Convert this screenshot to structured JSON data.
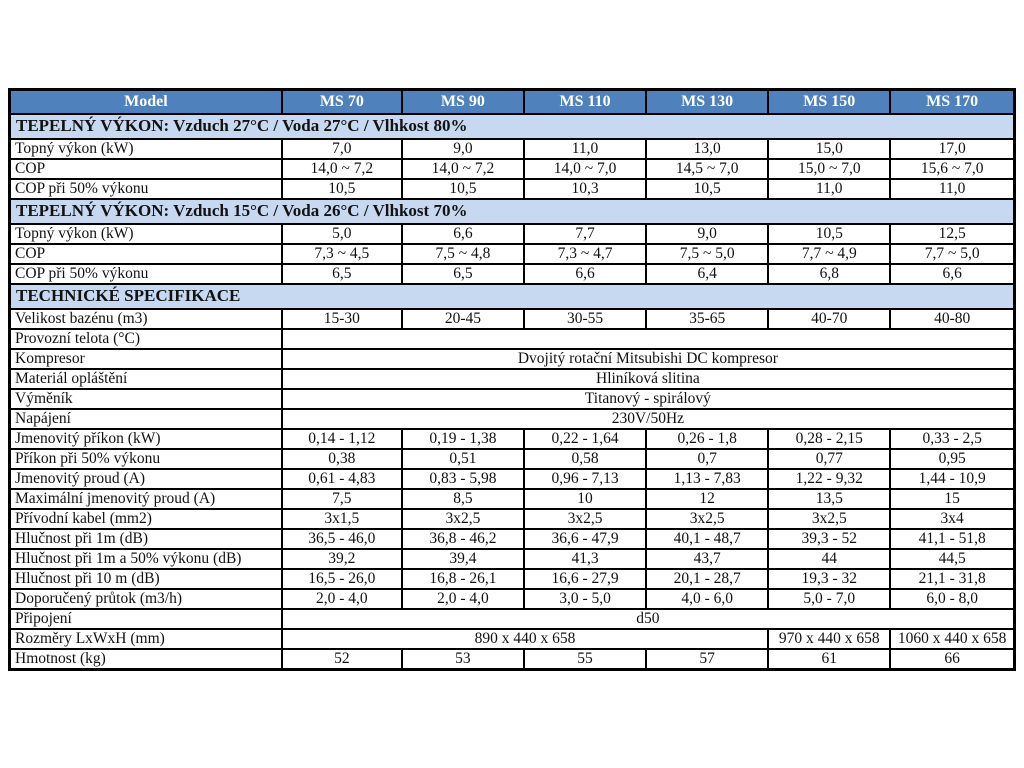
{
  "colors": {
    "header_bg": "#4f81bd",
    "header_text": "#ffffff",
    "section_bg": "#c6d9f1",
    "border": "#000000",
    "body_text": "#121212",
    "page_bg": "#ffffff"
  },
  "table": {
    "header": [
      "Model",
      "MS 70",
      "MS 90",
      "MS 110",
      "MS 130",
      "MS 150",
      "MS 170"
    ],
    "rows": [
      {
        "type": "section",
        "label": "TEPELNÝ VÝKON: Vzduch 27°C / Voda 27°C / Vlhkost 80%"
      },
      {
        "type": "data",
        "label": "Topný výkon (kW)",
        "values": [
          "7,0",
          "9,0",
          "11,0",
          "13,0",
          "15,0",
          "17,0"
        ]
      },
      {
        "type": "data",
        "label": "COP",
        "values": [
          "14,0 ~ 7,2",
          "14,0 ~ 7,2",
          "14,0 ~ 7,0",
          "14,5 ~ 7,0",
          "15,0 ~ 7,0",
          "15,6 ~ 7,0"
        ]
      },
      {
        "type": "data",
        "label": "COP při 50% výkonu",
        "values": [
          "10,5",
          "10,5",
          "10,3",
          "10,5",
          "11,0",
          "11,0"
        ]
      },
      {
        "type": "section",
        "label": "TEPELNÝ VÝKON: Vzduch 15°C / Voda 26°C / Vlhkost 70%"
      },
      {
        "type": "data",
        "label": "Topný výkon (kW)",
        "values": [
          "5,0",
          "6,6",
          "7,7",
          "9,0",
          "10,5",
          "12,5"
        ]
      },
      {
        "type": "data",
        "label": "COP",
        "values": [
          "7,3 ~ 4,5",
          "7,5 ~ 4,8",
          "7,3 ~ 4,7",
          "7,5 ~ 5,0",
          "7,7 ~ 4,9",
          "7,7 ~ 5,0"
        ]
      },
      {
        "type": "data",
        "label": "COP při 50% výkonu",
        "values": [
          "6,5",
          "6,5",
          "6,6",
          "6,4",
          "6,8",
          "6,6"
        ]
      },
      {
        "type": "section",
        "label": "TECHNICKÉ SPECIFIKACE"
      },
      {
        "type": "data",
        "label": "Velikost bazénu (m3)",
        "values": [
          "15-30",
          "20-45",
          "30-55",
          "35-65",
          "40-70",
          "40-80"
        ]
      },
      {
        "type": "span",
        "label": "Provozní telota (°C)",
        "value": ""
      },
      {
        "type": "span",
        "label": "Kompresor",
        "value": "Dvojitý rotační Mitsubishi DC kompresor"
      },
      {
        "type": "span",
        "label": "Materiál opláštění",
        "value": "Hliníková slitina"
      },
      {
        "type": "span",
        "label": "Výměník",
        "value": "Titanový - spirálový"
      },
      {
        "type": "span",
        "label": "Napájení",
        "value": "230V/50Hz"
      },
      {
        "type": "data",
        "label": "Jmenovitý příkon (kW)",
        "values": [
          "0,14 - 1,12",
          "0,19 - 1,38",
          "0,22 - 1,64",
          "0,26 - 1,8",
          "0,28 - 2,15",
          "0,33 - 2,5"
        ]
      },
      {
        "type": "data",
        "label": "Příkon při 50% výkonu",
        "values": [
          "0,38",
          "0,51",
          "0,58",
          "0,7",
          "0,77",
          "0,95"
        ]
      },
      {
        "type": "data",
        "label": "Jmenovitý proud (A)",
        "values": [
          "0,61 - 4,83",
          "0,83 - 5,98",
          "0,96 - 7,13",
          "1,13 - 7,83",
          "1,22 - 9,32",
          "1,44 - 10,9"
        ]
      },
      {
        "type": "data",
        "label": "Maximální jmenovitý proud (A)",
        "values": [
          "7,5",
          "8,5",
          "10",
          "12",
          "13,5",
          "15"
        ]
      },
      {
        "type": "data",
        "label": "Přívodní kabel (mm2)",
        "values": [
          "3x1,5",
          "3x2,5",
          "3x2,5",
          "3x2,5",
          "3x2,5",
          "3x4"
        ]
      },
      {
        "type": "data",
        "label": "Hlučnost při 1m (dB)",
        "values": [
          "36,5 - 46,0",
          "36,8 - 46,2",
          "36,6 - 47,9",
          "40,1 - 48,7",
          "39,3 - 52",
          "41,1 - 51,8"
        ]
      },
      {
        "type": "data",
        "label": "Hlučnost při 1m a 50% výkonu (dB)",
        "values": [
          "39,2",
          "39,4",
          "41,3",
          "43,7",
          "44",
          "44,5"
        ]
      },
      {
        "type": "data",
        "label": "Hlučnost při 10 m (dB)",
        "values": [
          "16,5 - 26,0",
          "16,8 - 26,1",
          "16,6 - 27,9",
          "20,1 - 28,7",
          "19,3 - 32",
          "21,1 - 31,8"
        ]
      },
      {
        "type": "data",
        "label": "Doporučený průtok (m3/h)",
        "values": [
          "2,0 - 4,0",
          "2,0 - 4,0",
          "3,0 - 5,0",
          "4,0 - 6,0",
          "5,0 - 7,0",
          "6,0 - 8,0"
        ]
      },
      {
        "type": "span",
        "label": "Připojení",
        "value": "d50"
      },
      {
        "type": "multispan",
        "label": "Rozměry LxWxH (mm)",
        "cells": [
          {
            "value": "890 x 440 x 658",
            "colspan": 4
          },
          {
            "value": "970 x 440 x 658",
            "colspan": 1
          },
          {
            "value": "1060 x 440 x 658",
            "colspan": 1
          }
        ]
      },
      {
        "type": "data",
        "label": "Hmotnost (kg)",
        "values": [
          "52",
          "53",
          "55",
          "57",
          "61",
          "66"
        ]
      }
    ]
  }
}
